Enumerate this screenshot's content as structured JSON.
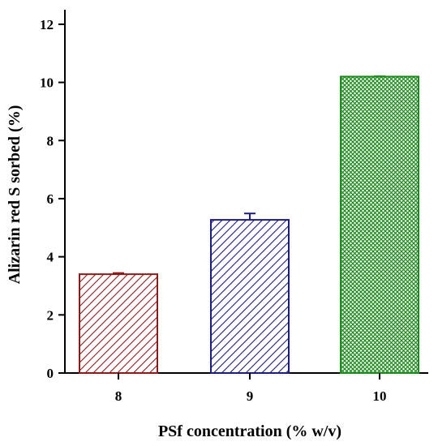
{
  "chart_data": {
    "type": "bar",
    "title": "",
    "xlabel": "PSf concentration (% w/v)",
    "ylabel": "Alizarin red S sorbed (%)",
    "categories": [
      "8",
      "9",
      "10"
    ],
    "values": [
      3.4,
      5.27,
      10.2
    ],
    "errors": [
      0.04,
      0.22,
      0.01
    ],
    "ylim": [
      0,
      12.5
    ],
    "yticks": [
      0,
      2,
      4,
      6,
      8,
      10,
      12
    ],
    "grid": false,
    "bar_styles": [
      {
        "color": "#8b1a1a",
        "pattern": "diagonal-hatch"
      },
      {
        "color": "#1c1c7a",
        "pattern": "diagonal-hatch"
      },
      {
        "color": "#1f8a1f",
        "pattern": "crosshatch"
      }
    ]
  }
}
